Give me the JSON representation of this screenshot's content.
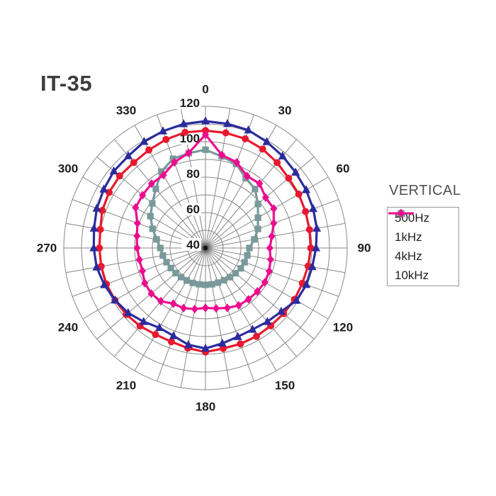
{
  "title": "IT-35",
  "legend": {
    "title": "VERTICAL",
    "items": [
      {
        "label": "500Hz",
        "color": "#e8192e",
        "marker": "circle-marker-icon"
      },
      {
        "label": "1kHz",
        "color": "#2b2b9e",
        "marker": "triangle-marker-icon"
      },
      {
        "label": "4kHz",
        "color": "#79999b",
        "marker": "square-marker-icon"
      },
      {
        "label": "10kHz",
        "color": "#ec0d8e",
        "marker": "diamond-marker-icon"
      }
    ]
  },
  "chart_data": {
    "type": "line",
    "subtype": "polar-radiation-pattern",
    "title": "IT-35",
    "orientation_label": "VERTICAL",
    "angle_unit": "degrees",
    "zero_at_top": true,
    "clockwise": true,
    "angle_step": 10,
    "angle_tick_labels": [
      "0",
      "30",
      "60",
      "90",
      "120",
      "150",
      "180",
      "210",
      "240",
      "270",
      "300",
      "330"
    ],
    "r_axis": {
      "min": 40,
      "max": 120,
      "ring_step": 10,
      "labels": [
        "40",
        "60",
        "80",
        "100",
        "120"
      ]
    },
    "grid": {
      "spoke_step_deg": 10,
      "color": "#878787",
      "rings_on": true
    },
    "legend_position": "right",
    "series": [
      {
        "name": "500Hz",
        "marker": "circle",
        "color": "#e8192e",
        "values": [
          106.3,
          106.0,
          105.6,
          104.5,
          102.9,
          101.3,
          100.8,
          100.1,
          99.6,
          99.4,
          98.8,
          98.2,
          98.0,
          97.6,
          97.3,
          97.6,
          97.6,
          97.6,
          98.7,
          97.4,
          96.3,
          96.4,
          97.5,
          98.4,
          99.0,
          99.5,
          99.8,
          99.9,
          100.3,
          102.0,
          102.8,
          103.3,
          103.0,
          103.9,
          105.2,
          106.3
        ]
      },
      {
        "name": "1kHz",
        "marker": "triangle",
        "color": "#2b2b9e",
        "values": [
          111.6,
          111.2,
          110.8,
          109.2,
          107.7,
          106.4,
          105.6,
          104.7,
          103.8,
          102.4,
          101.2,
          100.6,
          99.3,
          95.8,
          94.3,
          93.1,
          93.3,
          94.7,
          96.7,
          95.5,
          92.8,
          92.0,
          94.3,
          97.0,
          98.9,
          100.8,
          102.4,
          103.1,
          103.9,
          105.3,
          106.3,
          107.5,
          107.8,
          109.3,
          110.2,
          111.1
        ]
      },
      {
        "name": "4kHz",
        "marker": "square",
        "color": "#79999b",
        "values": [
          95.5,
          92.5,
          90.5,
          85.5,
          83.5,
          78.7,
          74.2,
          71.5,
          68.0,
          64.8,
          64.0,
          63.5,
          63.0,
          62.2,
          61.5,
          61.0,
          60.8,
          60.8,
          60.8,
          60.8,
          61.0,
          61.2,
          61.5,
          62.0,
          62.6,
          63.4,
          64.4,
          65.5,
          68.0,
          71.8,
          75.9,
          79.2,
          83.6,
          89.8,
          93.6,
          94.4
        ]
      },
      {
        "name": "10kHz",
        "marker": "diamond",
        "color": "#ec0d8e",
        "values": [
          104.0,
          93.3,
          91.5,
          86.9,
          87.5,
          84.3,
          84.5,
          81.0,
          78.0,
          76.3,
          77.3,
          78.3,
          78.7,
          78.2,
          77.8,
          77.4,
          76.0,
          74.6,
          73.8,
          75.0,
          76.1,
          76.3,
          79.2,
          80.0,
          79.6,
          77.9,
          77.9,
          78.6,
          79.3,
          80.9,
          85.6,
          86.4,
          87.4,
          87.5,
          91.5,
          94.5
        ]
      }
    ]
  }
}
